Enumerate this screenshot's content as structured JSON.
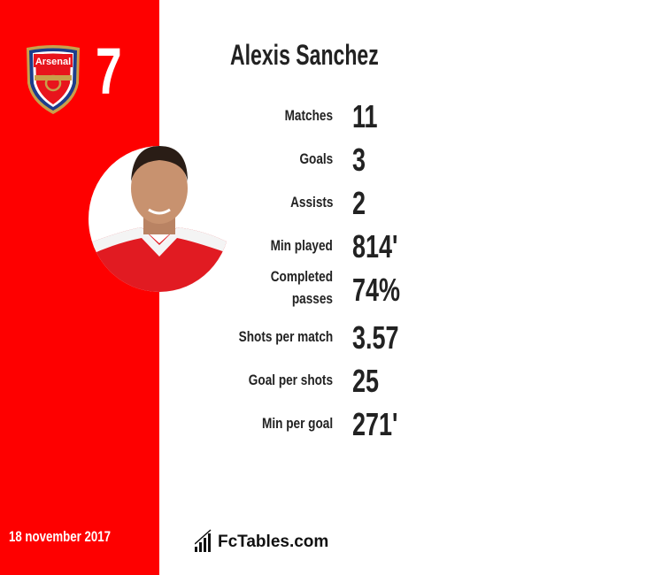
{
  "club": {
    "name": "Arsenal",
    "colors": {
      "primary": "#fe0000",
      "crest_blue": "#1d3c8c",
      "gold": "#c8a04b"
    }
  },
  "shirt_number": "7",
  "player_name": "Alexis Sanchez",
  "stats": [
    {
      "label": "Matches",
      "value": "11"
    },
    {
      "label": "Goals",
      "value": "3"
    },
    {
      "label": "Assists",
      "value": "2"
    },
    {
      "label": "Min played",
      "value": "814'"
    },
    {
      "label": "Completed passes",
      "value": "74%"
    },
    {
      "label": "Shots per match",
      "value": "3.57"
    },
    {
      "label": "Goal per shots",
      "value": "25"
    },
    {
      "label": "Min per goal",
      "value": "271'"
    }
  ],
  "date": "18 november 2017",
  "brand": "FcTables.com"
}
